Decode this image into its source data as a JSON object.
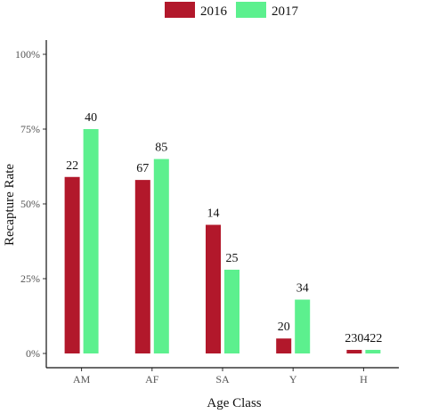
{
  "chart_data": {
    "type": "bar",
    "categories": [
      "AM",
      "AF",
      "SA",
      "Y",
      "H"
    ],
    "series": [
      {
        "name": "2016",
        "color": "#b2182b",
        "values": [
          0.59,
          0.58,
          0.43,
          0.05,
          0.012
        ],
        "labels": [
          "22",
          "67",
          "14",
          "20",
          "230"
        ]
      },
      {
        "name": "2017",
        "color": "#5cf08e",
        "values": [
          0.75,
          0.65,
          0.28,
          0.18,
          0.012
        ],
        "labels": [
          "40",
          "85",
          "25",
          "34",
          "422"
        ]
      }
    ],
    "xlabel": "Age Class",
    "ylabel": "Recapture Rate",
    "ylim": [
      0,
      1
    ],
    "yticks": [
      0,
      0.25,
      0.5,
      0.75,
      1
    ],
    "ytick_labels": [
      "0%",
      "25%",
      "50%",
      "75%",
      "100%"
    ],
    "legend_position": "top",
    "grid": false
  }
}
